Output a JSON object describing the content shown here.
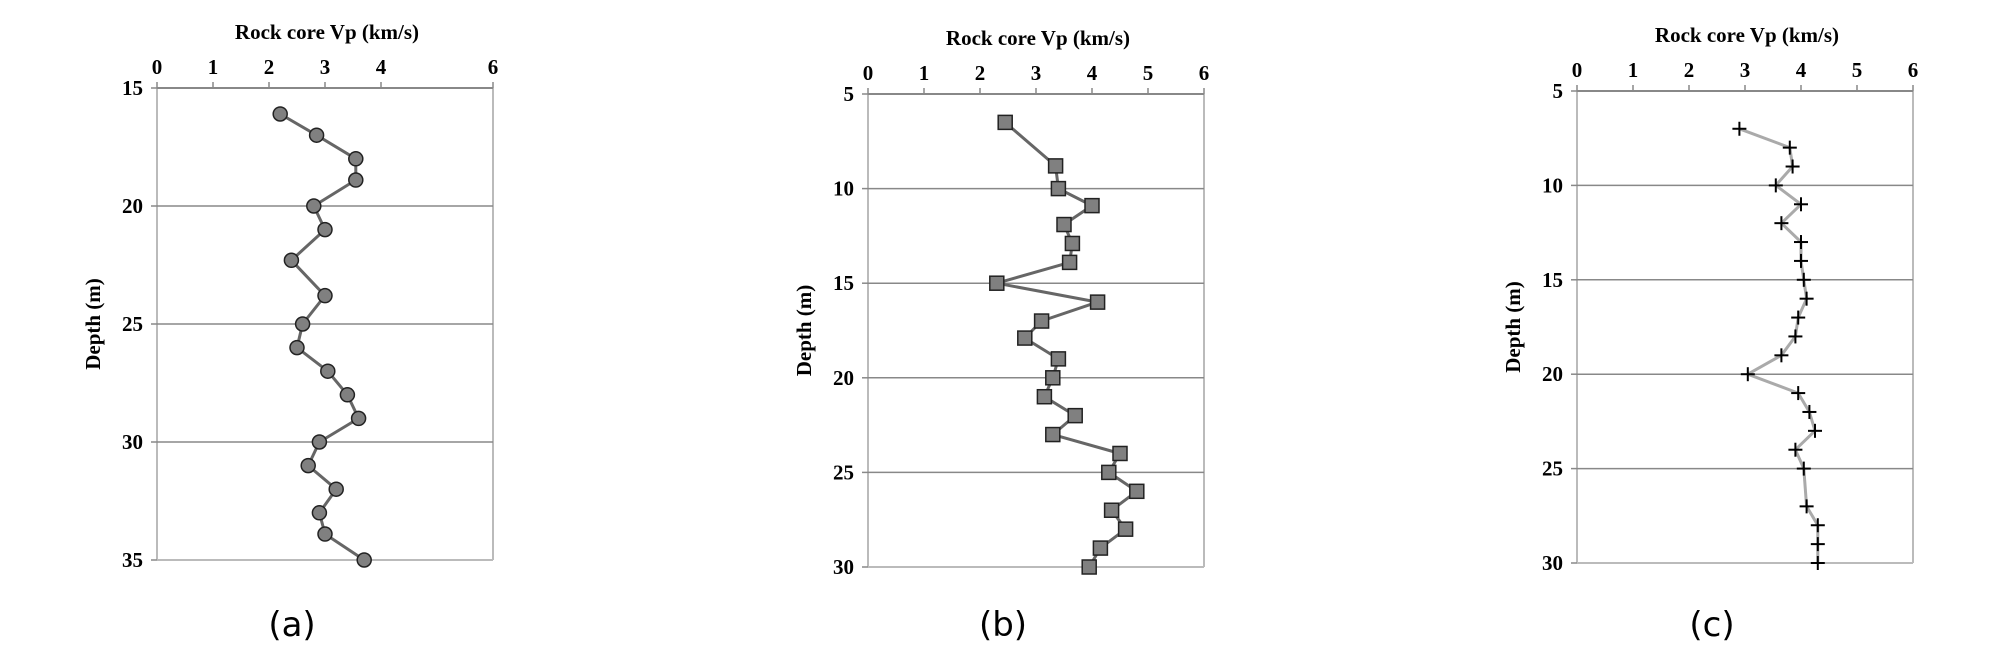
{
  "chart_data": [
    {
      "type": "line",
      "panel_label": "(a)",
      "title": "Rock core Vp (km/s)",
      "xlabel": "Rock core Vp (km/s)",
      "ylabel": "Depth (m)",
      "xlim": [
        0,
        6
      ],
      "ylim": [
        15,
        35
      ],
      "x_ticks": [
        0,
        1,
        2,
        3,
        4,
        6
      ],
      "x_tick_labels": [
        "0",
        "1",
        "2",
        "3",
        "4",
        "6"
      ],
      "y_ticks": [
        15,
        20,
        25,
        30,
        35
      ],
      "x_axis_position": "top",
      "y_axis_inverted": true,
      "grid": "horizontal",
      "marker": "circle",
      "series": [
        {
          "name": "Rock core Vp",
          "x": [
            2.2,
            2.85,
            3.55,
            3.55,
            2.8,
            3.0,
            2.4,
            3.0,
            2.6,
            2.5,
            3.05,
            3.4,
            3.6,
            2.9,
            2.7,
            3.2,
            2.9,
            3.0,
            3.7
          ],
          "y": [
            16.1,
            17.0,
            18.0,
            18.9,
            20.0,
            21.0,
            22.3,
            23.8,
            25.0,
            26.0,
            27.0,
            28.0,
            29.0,
            30.0,
            31.0,
            32.0,
            33.0,
            33.9,
            35.0
          ]
        }
      ]
    },
    {
      "type": "line",
      "panel_label": "(b)",
      "title": "Rock core Vp (km/s)",
      "xlabel": "Rock core Vp (km/s)",
      "ylabel": "Depth (m)",
      "xlim": [
        0,
        6
      ],
      "ylim": [
        5,
        30
      ],
      "x_ticks": [
        0,
        1,
        2,
        3,
        4,
        5,
        6
      ],
      "x_tick_labels": [
        "0",
        "1",
        "2",
        "3",
        "4",
        "5",
        "6"
      ],
      "y_ticks": [
        5,
        10,
        15,
        20,
        25,
        30
      ],
      "x_axis_position": "top",
      "y_axis_inverted": true,
      "grid": "horizontal",
      "marker": "square",
      "series": [
        {
          "name": "Rock core Vp",
          "x": [
            2.45,
            3.35,
            3.4,
            4.0,
            3.5,
            3.65,
            3.6,
            2.3,
            4.1,
            3.1,
            2.8,
            3.4,
            3.3,
            3.15,
            3.7,
            3.3,
            4.5,
            4.3,
            4.8,
            4.35,
            4.6,
            4.15,
            3.95
          ],
          "y": [
            6.5,
            8.8,
            10.0,
            10.9,
            11.9,
            12.9,
            13.9,
            15.0,
            16.0,
            17.0,
            17.9,
            19.0,
            20.0,
            21.0,
            22.0,
            23.0,
            24.0,
            25.0,
            26.0,
            27.0,
            28.0,
            29.0,
            30.0
          ]
        }
      ]
    },
    {
      "type": "line",
      "panel_label": "(c)",
      "title": "Rock core Vp (km/s)",
      "xlabel": "Rock core Vp (km/s)",
      "ylabel": "Depth (m)",
      "xlim": [
        0,
        6
      ],
      "ylim": [
        5,
        30
      ],
      "x_ticks": [
        0,
        1,
        2,
        3,
        4,
        5,
        6
      ],
      "x_tick_labels": [
        "0",
        "1",
        "2",
        "3",
        "4",
        "5",
        "6"
      ],
      "y_ticks": [
        5,
        10,
        15,
        20,
        25,
        30
      ],
      "x_axis_position": "top",
      "y_axis_inverted": true,
      "grid": "horizontal",
      "marker": "plus",
      "series": [
        {
          "name": "Rock core Vp",
          "x": [
            2.9,
            3.8,
            3.85,
            3.55,
            4.0,
            3.65,
            4.0,
            4.0,
            4.05,
            4.1,
            3.95,
            3.9,
            3.65,
            3.05,
            3.95,
            4.15,
            4.25,
            3.9,
            4.05,
            4.1,
            4.3,
            4.3,
            4.3
          ],
          "y": [
            7.0,
            8.0,
            9.0,
            10.0,
            11.0,
            12.0,
            13.0,
            14.0,
            15.0,
            16.0,
            17.0,
            18.0,
            19.0,
            20.0,
            21.0,
            22.0,
            23.0,
            24.0,
            25.0,
            27.0,
            28.0,
            29.0,
            30.0
          ]
        }
      ]
    }
  ],
  "colors": {
    "line_dark": "#666666",
    "line_light": "#aaaaaa",
    "marker_fill": "#808080",
    "marker_edge": "#222222",
    "grid": "#888888",
    "frame": "#bbbbbb",
    "text": "#000000"
  }
}
